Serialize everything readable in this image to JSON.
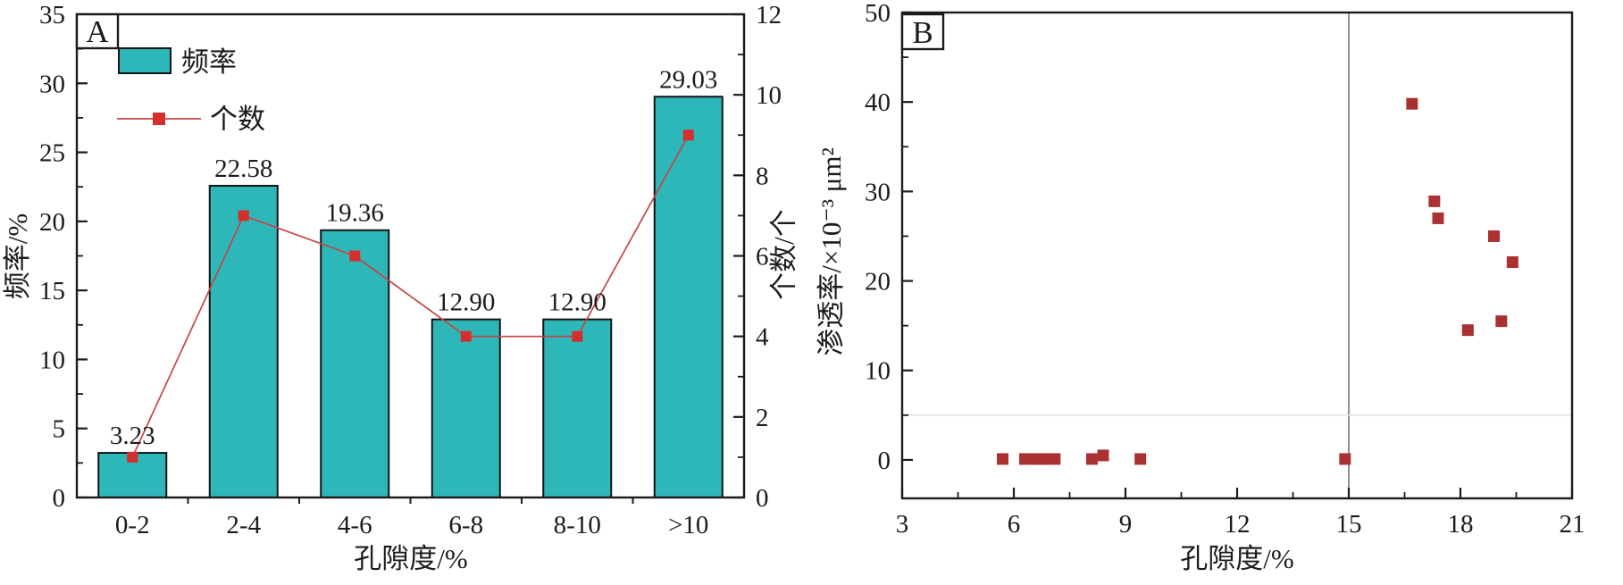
{
  "figure": {
    "background": "#ffffff",
    "description_labels": {
      "panel_a_letter": "A",
      "panel_b_letter": "B"
    }
  },
  "colors": {
    "axis": "#1b1b1b",
    "bar_fill": "#2eb7b9",
    "bar_edge": "#141414",
    "count_line": "#c64444",
    "count_marker": "#d42f2f",
    "scatter_marker": "#aa3131",
    "reference_vertical": "#555555",
    "reference_horizontal": "#e3e0e0"
  },
  "chart_data": [
    {
      "panel_label": "A",
      "type": "bar+line",
      "categories": [
        "0-2",
        "2-4",
        "4-6",
        "6-8",
        "8-10",
        ">10"
      ],
      "series": [
        {
          "name": "频率",
          "type": "bar",
          "axis": "left",
          "values": [
            3.23,
            22.58,
            19.36,
            12.9,
            12.9,
            29.03
          ],
          "value_labels": [
            "3.23",
            "22.58",
            "19.36",
            "12.90",
            "12.90",
            "29.03"
          ],
          "fill": "#2eb7b9",
          "stroke": "#141414"
        },
        {
          "name": "个数",
          "type": "line",
          "axis": "right",
          "values": [
            1,
            7,
            6,
            4,
            4,
            9
          ],
          "line_color": "#c64444",
          "marker_color": "#d42f2f",
          "marker_shape": "square"
        }
      ],
      "axes": {
        "x": {
          "label": "孔隙度/%"
        },
        "left": {
          "label": "频率/%",
          "min": 0,
          "max": 35,
          "tick_step": 5,
          "minor_step": 2.5
        },
        "right": {
          "label": "个数/个",
          "min": 0,
          "max": 12,
          "tick_step": 2,
          "minor_step": 1
        }
      },
      "legend": [
        "频率",
        "个数"
      ],
      "grid": false
    },
    {
      "panel_label": "B",
      "type": "scatter",
      "x": {
        "label": "孔隙度/%",
        "min": 3,
        "max": 21,
        "tick_step": 3,
        "minor_step": 1.5,
        "tick_labels": [
          "3",
          "6",
          "9",
          "12",
          "15",
          "18",
          "21"
        ]
      },
      "y": {
        "label": "渗透率/×10⁻³ μm²",
        "min": -4.3,
        "max": 50,
        "tick_step": 10,
        "minor_step": 5,
        "tick_labels": [
          "0",
          "10",
          "20",
          "30",
          "40",
          "50"
        ]
      },
      "marker": {
        "shape": "square",
        "size": 13,
        "color": "#aa3131"
      },
      "points": [
        [
          5.7,
          0.1
        ],
        [
          6.3,
          0.1
        ],
        [
          6.6,
          0.1
        ],
        [
          6.8,
          0.1
        ],
        [
          7.1,
          0.1
        ],
        [
          8.1,
          0.1
        ],
        [
          8.4,
          0.5
        ],
        [
          9.4,
          0.1
        ],
        [
          14.9,
          0.1
        ],
        [
          16.7,
          39.8
        ],
        [
          17.3,
          28.9
        ],
        [
          17.4,
          27.0
        ],
        [
          18.9,
          25.0
        ],
        [
          19.4,
          22.1
        ],
        [
          19.1,
          15.5
        ],
        [
          18.2,
          14.5
        ]
      ],
      "reference_lines": [
        {
          "orientation": "vertical",
          "x": 15,
          "color": "#555555"
        },
        {
          "orientation": "horizontal",
          "y": 5,
          "color": "#e3e0e0"
        }
      ],
      "grid": false
    }
  ]
}
